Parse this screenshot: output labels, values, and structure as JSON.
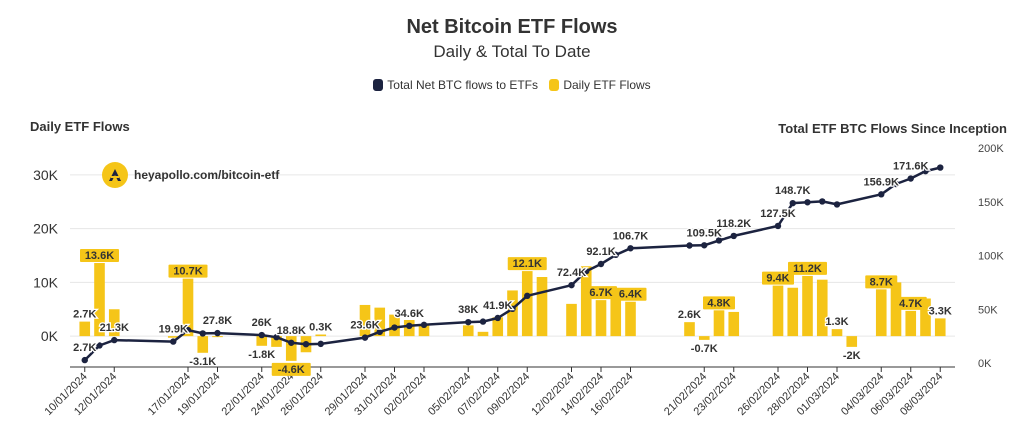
{
  "title": "Net Bitcoin ETF Flows",
  "subtitle": "Daily & Total To Date",
  "legend": {
    "line_label": "Total Net BTC flows to ETFs",
    "bar_label": "Daily ETF Flows"
  },
  "watermark": "heyapollo.com/bitcoin-etf",
  "colors": {
    "line": "#1c2340",
    "bar": "#f5c518",
    "grid": "#e6e6e6"
  },
  "chart_data": {
    "type": "bar+line",
    "title": "Net Bitcoin ETF Flows",
    "subtitle": "Daily & Total To Date",
    "ylabel_left": "Daily ETF Flows",
    "ylabel_right": "Total ETF BTC Flows Since Inception",
    "ylim_left": [
      -5000,
      35000
    ],
    "ylim_right": [
      0,
      200000
    ],
    "left_ticks": [
      {
        "v": 0,
        "label": "0K"
      },
      {
        "v": 10000,
        "label": "10K"
      },
      {
        "v": 20000,
        "label": "20K"
      },
      {
        "v": 30000,
        "label": "30K"
      }
    ],
    "right_ticks": [
      {
        "v": 0,
        "label": "0K"
      },
      {
        "v": 50000,
        "label": "50K"
      },
      {
        "v": 100000,
        "label": "100K"
      },
      {
        "v": 150000,
        "label": "150K"
      },
      {
        "v": 200000,
        "label": "200K"
      }
    ],
    "x_range": [
      "2024-01-09",
      "2024-03-09"
    ],
    "x_tick_labels": [
      "10/01/2024",
      "12/01/2024",
      "17/01/2024",
      "19/01/2024",
      "22/01/2024",
      "24/01/2024",
      "26/01/2024",
      "29/01/2024",
      "31/01/2024",
      "02/02/2024",
      "05/02/2024",
      "07/02/2024",
      "09/02/2024",
      "12/02/2024",
      "14/02/2024",
      "16/02/2024",
      "21/02/2024",
      "23/02/2024",
      "26/02/2024",
      "28/02/2024",
      "01/03/2024",
      "04/03/2024",
      "06/03/2024",
      "08/03/2024"
    ],
    "legend_position": "top",
    "grid": true,
    "series": [
      {
        "name": "Daily ETF Flows",
        "kind": "bar",
        "axis": "left",
        "points": [
          {
            "date": "2024-01-10",
            "value": 2700,
            "label": "2.7K"
          },
          {
            "date": "2024-01-11",
            "value": 13600,
            "label": "13.6K"
          },
          {
            "date": "2024-01-12",
            "value": 5000,
            "label": ""
          },
          {
            "date": "2024-01-16",
            "value": -300,
            "label": ""
          },
          {
            "date": "2024-01-17",
            "value": 10700,
            "label": "10.7K"
          },
          {
            "date": "2024-01-18",
            "value": -3100,
            "label": "-3.1K"
          },
          {
            "date": "2024-01-19",
            "value": -100,
            "label": ""
          },
          {
            "date": "2024-01-22",
            "value": -1800,
            "label": "-1.8K"
          },
          {
            "date": "2024-01-23",
            "value": -2000,
            "label": ""
          },
          {
            "date": "2024-01-24",
            "value": -4600,
            "label": "-4.6K"
          },
          {
            "date": "2024-01-25",
            "value": -3000,
            "label": ""
          },
          {
            "date": "2024-01-26",
            "value": 300,
            "label": "0.3K"
          },
          {
            "date": "2024-01-29",
            "value": 5800,
            "label": ""
          },
          {
            "date": "2024-01-30",
            "value": 5300,
            "label": ""
          },
          {
            "date": "2024-01-31",
            "value": 4000,
            "label": ""
          },
          {
            "date": "2024-02-01",
            "value": 3000,
            "label": ""
          },
          {
            "date": "2024-02-02",
            "value": 2000,
            "label": ""
          },
          {
            "date": "2024-02-05",
            "value": 2000,
            "label": ""
          },
          {
            "date": "2024-02-06",
            "value": 800,
            "label": ""
          },
          {
            "date": "2024-02-07",
            "value": 3500,
            "label": ""
          },
          {
            "date": "2024-02-08",
            "value": 8500,
            "label": ""
          },
          {
            "date": "2024-02-09",
            "value": 12100,
            "label": "12.1K"
          },
          {
            "date": "2024-02-10",
            "value": 11000,
            "label": ""
          },
          {
            "date": "2024-02-12",
            "value": 6000,
            "label": ""
          },
          {
            "date": "2024-02-13",
            "value": 13000,
            "label": ""
          },
          {
            "date": "2024-02-14",
            "value": 6700,
            "label": "6.7K"
          },
          {
            "date": "2024-02-15",
            "value": 8500,
            "label": ""
          },
          {
            "date": "2024-02-16",
            "value": 6400,
            "label": "6.4K"
          },
          {
            "date": "2024-02-20",
            "value": 2600,
            "label": "2.6K"
          },
          {
            "date": "2024-02-21",
            "value": -700,
            "label": "-0.7K"
          },
          {
            "date": "2024-02-22",
            "value": 4800,
            "label": "4.8K"
          },
          {
            "date": "2024-02-23",
            "value": 4500,
            "label": ""
          },
          {
            "date": "2024-02-26",
            "value": 9400,
            "label": "9.4K"
          },
          {
            "date": "2024-02-27",
            "value": 9000,
            "label": ""
          },
          {
            "date": "2024-02-28",
            "value": 11200,
            "label": "11.2K"
          },
          {
            "date": "2024-02-29",
            "value": 10500,
            "label": ""
          },
          {
            "date": "2024-03-01",
            "value": 1300,
            "label": "1.3K"
          },
          {
            "date": "2024-03-02",
            "value": -2000,
            "label": "-2K"
          },
          {
            "date": "2024-03-04",
            "value": 8700,
            "label": "8.7K"
          },
          {
            "date": "2024-03-05",
            "value": 10000,
            "label": ""
          },
          {
            "date": "2024-03-06",
            "value": 4700,
            "label": "4.7K"
          },
          {
            "date": "2024-03-07",
            "value": 7000,
            "label": ""
          },
          {
            "date": "2024-03-08",
            "value": 3300,
            "label": "3.3K"
          }
        ]
      },
      {
        "name": "Total Net BTC flows to ETFs",
        "kind": "line",
        "axis": "right",
        "points": [
          {
            "date": "2024-01-10",
            "value": 2700,
            "label": "2.7K"
          },
          {
            "date": "2024-01-11",
            "value": 16300,
            "label": ""
          },
          {
            "date": "2024-01-12",
            "value": 21300,
            "label": "21.3K"
          },
          {
            "date": "2024-01-16",
            "value": 19900,
            "label": "19.9K"
          },
          {
            "date": "2024-01-17",
            "value": 30600,
            "label": ""
          },
          {
            "date": "2024-01-18",
            "value": 27500,
            "label": ""
          },
          {
            "date": "2024-01-19",
            "value": 27800,
            "label": "27.8K"
          },
          {
            "date": "2024-01-22",
            "value": 26000,
            "label": "26K"
          },
          {
            "date": "2024-01-23",
            "value": 24000,
            "label": ""
          },
          {
            "date": "2024-01-24",
            "value": 18800,
            "label": "18.8K"
          },
          {
            "date": "2024-01-25",
            "value": 17500,
            "label": ""
          },
          {
            "date": "2024-01-26",
            "value": 17800,
            "label": ""
          },
          {
            "date": "2024-01-29",
            "value": 23600,
            "label": "23.6K"
          },
          {
            "date": "2024-01-30",
            "value": 29000,
            "label": ""
          },
          {
            "date": "2024-01-31",
            "value": 33000,
            "label": ""
          },
          {
            "date": "2024-02-01",
            "value": 34600,
            "label": "34.6K"
          },
          {
            "date": "2024-02-02",
            "value": 35500,
            "label": ""
          },
          {
            "date": "2024-02-05",
            "value": 38000,
            "label": "38K"
          },
          {
            "date": "2024-02-06",
            "value": 38500,
            "label": ""
          },
          {
            "date": "2024-02-07",
            "value": 41900,
            "label": "41.9K"
          },
          {
            "date": "2024-02-08",
            "value": 50400,
            "label": ""
          },
          {
            "date": "2024-02-09",
            "value": 62500,
            "label": ""
          },
          {
            "date": "2024-02-12",
            "value": 72400,
            "label": "72.4K"
          },
          {
            "date": "2024-02-13",
            "value": 85400,
            "label": ""
          },
          {
            "date": "2024-02-14",
            "value": 92100,
            "label": "92.1K"
          },
          {
            "date": "2024-02-15",
            "value": 100600,
            "label": ""
          },
          {
            "date": "2024-02-16",
            "value": 106700,
            "label": "106.7K"
          },
          {
            "date": "2024-02-20",
            "value": 109300,
            "label": ""
          },
          {
            "date": "2024-02-21",
            "value": 109500,
            "label": "109.5K"
          },
          {
            "date": "2024-02-22",
            "value": 114000,
            "label": ""
          },
          {
            "date": "2024-02-23",
            "value": 118200,
            "label": "118.2K"
          },
          {
            "date": "2024-02-26",
            "value": 127500,
            "label": "127.5K"
          },
          {
            "date": "2024-02-27",
            "value": 148700,
            "label": "148.7K"
          },
          {
            "date": "2024-02-28",
            "value": 149500,
            "label": ""
          },
          {
            "date": "2024-02-29",
            "value": 150300,
            "label": ""
          },
          {
            "date": "2024-03-01",
            "value": 147500,
            "label": ""
          },
          {
            "date": "2024-03-04",
            "value": 156900,
            "label": "156.9K"
          },
          {
            "date": "2024-03-05",
            "value": 166500,
            "label": ""
          },
          {
            "date": "2024-03-06",
            "value": 171600,
            "label": "171.6K"
          },
          {
            "date": "2024-03-07",
            "value": 178500,
            "label": ""
          },
          {
            "date": "2024-03-08",
            "value": 181800,
            "label": ""
          }
        ]
      }
    ]
  }
}
